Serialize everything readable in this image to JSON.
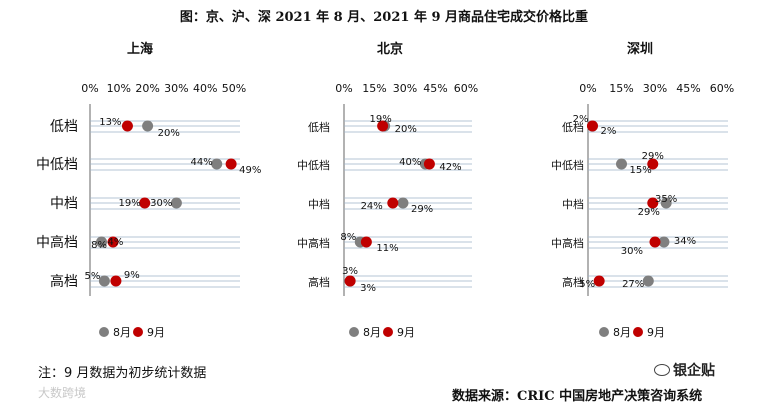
{
  "title": "图：京、沪、深 2021 年 8 月、2021 年 9 月商品住宅成交价格比重",
  "note": "注：9 月数据为初步统计数据",
  "source": "数据来源：CRIC 中国房地产决策咨询系统",
  "watermark_left": "大数跨境",
  "watermark_right": "银企贴",
  "colors": {
    "aug": "#7f7f7f",
    "sep": "#c00000",
    "gridline": "#9db3c7"
  },
  "chart_data": [
    {
      "type": "scatter",
      "title": "上海",
      "categories": [
        "低档",
        "中低档",
        "中档",
        "中高档",
        "高档"
      ],
      "xlim": [
        0,
        50
      ],
      "xticks": [
        "0%",
        "10%",
        "20%",
        "30%",
        "40%",
        "50%"
      ],
      "legend": {
        "position": "bottom",
        "entries": [
          "8月",
          "9月"
        ]
      },
      "series": [
        {
          "name": "8月",
          "values": [
            20,
            44,
            30,
            4,
            5
          ]
        },
        {
          "name": "9月",
          "values": [
            13,
            49,
            19,
            8,
            9
          ]
        }
      ],
      "labels": [
        {
          "category": "低档",
          "series": "8月",
          "text": "20%"
        },
        {
          "category": "低档",
          "series": "9月",
          "text": "13%"
        },
        {
          "category": "中低档",
          "series": "8月",
          "text": "44%"
        },
        {
          "category": "中低档",
          "series": "9月",
          "text": "49%"
        },
        {
          "category": "中档",
          "series": "8月",
          "text": "30%"
        },
        {
          "category": "中档",
          "series": "9月",
          "text": "19%"
        },
        {
          "category": "中高档",
          "series": "8月",
          "text": "4%"
        },
        {
          "category": "中高档",
          "series": "9月",
          "text": "8%"
        },
        {
          "category": "高档",
          "series": "8月",
          "text": "5%"
        },
        {
          "category": "高档",
          "series": "9月",
          "text": "9%"
        }
      ]
    },
    {
      "type": "scatter",
      "title": "北京",
      "categories": [
        "低档",
        "中低档",
        "中档",
        "中高档",
        "高档"
      ],
      "xlim": [
        0,
        60
      ],
      "xticks": [
        "0%",
        "15%",
        "30%",
        "45%",
        "60%"
      ],
      "legend": {
        "position": "bottom",
        "entries": [
          "8月",
          "9月"
        ]
      },
      "series": [
        {
          "name": "8月",
          "values": [
            20,
            40,
            29,
            8,
            3
          ]
        },
        {
          "name": "9月",
          "values": [
            19,
            42,
            24,
            11,
            3
          ]
        }
      ],
      "labels": [
        {
          "category": "低档",
          "series": "8月",
          "text": "20%"
        },
        {
          "category": "低档",
          "series": "9月",
          "text": "19%"
        },
        {
          "category": "中低档",
          "series": "8月",
          "text": "40%"
        },
        {
          "category": "中低档",
          "series": "9月",
          "text": "42%"
        },
        {
          "category": "中档",
          "series": "8月",
          "text": "29%"
        },
        {
          "category": "中档",
          "series": "9月",
          "text": "24%"
        },
        {
          "category": "中高档",
          "series": "8月",
          "text": "8%"
        },
        {
          "category": "中高档",
          "series": "9月",
          "text": "11%"
        },
        {
          "category": "高档",
          "series": "8月",
          "text": "3%"
        },
        {
          "category": "高档",
          "series": "9月",
          "text": "3%"
        }
      ]
    },
    {
      "type": "scatter",
      "title": "深圳",
      "categories": [
        "低档",
        "中低档",
        "中档",
        "中高档",
        "高档"
      ],
      "xlim": [
        0,
        60
      ],
      "xticks": [
        "0%",
        "15%",
        "30%",
        "45%",
        "60%"
      ],
      "legend": {
        "position": "bottom",
        "entries": [
          "8月",
          "9月"
        ]
      },
      "series": [
        {
          "name": "8月",
          "values": [
            2,
            15,
            35,
            34,
            27
          ]
        },
        {
          "name": "9月",
          "values": [
            2,
            29,
            29,
            30,
            5
          ]
        }
      ],
      "labels": [
        {
          "category": "低档",
          "series": "8月",
          "text": "2%"
        },
        {
          "category": "低档",
          "series": "9月",
          "text": "2%"
        },
        {
          "category": "中低档",
          "series": "8月",
          "text": "15%"
        },
        {
          "category": "中低档",
          "series": "9月",
          "text": "29%"
        },
        {
          "category": "中档",
          "series": "8月",
          "text": "35%"
        },
        {
          "category": "中档",
          "series": "9月",
          "text": "29%"
        },
        {
          "category": "中高档",
          "series": "8月",
          "text": "34%"
        },
        {
          "category": "中高档",
          "series": "9月",
          "text": "30%"
        },
        {
          "category": "高档",
          "series": "8月",
          "text": "27%"
        },
        {
          "category": "高档",
          "series": "9月",
          "text": "5%"
        }
      ]
    }
  ]
}
